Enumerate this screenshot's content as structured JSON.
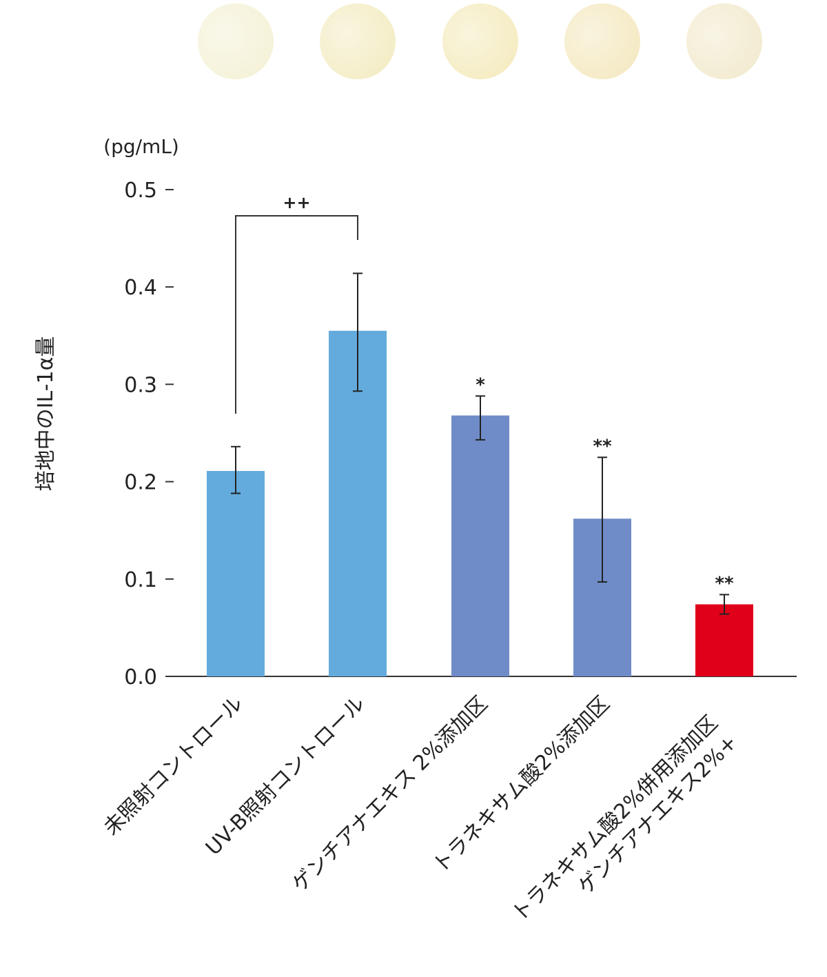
{
  "chart_data": {
    "type": "bar",
    "unit_label": "(pg/mL)",
    "ylabel": "培地中のIL-1α量",
    "ylim": [
      0,
      0.5
    ],
    "yticks": [
      "0.0",
      "0.1",
      "0.2",
      "0.3",
      "0.4",
      "0.5"
    ],
    "categories": [
      [
        "未照射コントロール"
      ],
      [
        "UV-B照射コントロール"
      ],
      [
        "ゲンチアナエキス 2%添加区"
      ],
      [
        "トラネキサム酸2%添加区"
      ],
      [
        "ゲンチアナエキス2%+",
        "トラネキサム酸2%併用添加区"
      ]
    ],
    "values": [
      0.211,
      0.355,
      0.268,
      0.162,
      0.074
    ],
    "error_upper": [
      0.236,
      0.414,
      0.288,
      0.225,
      0.084
    ],
    "error_lower": [
      0.188,
      0.293,
      0.243,
      0.097,
      0.064
    ],
    "significance": [
      "",
      "",
      "*",
      "**",
      "**"
    ],
    "comparison": {
      "from": 0,
      "to": 1,
      "label": "++"
    },
    "colors": [
      "#64abdd",
      "#64abdd",
      "#6f8cc8",
      "#6f8cc8",
      "#e0001a"
    ],
    "sample_colors": [
      "#f5f2d8",
      "#f4edc6",
      "#f5ecc2",
      "#f5eac4",
      "#f3ebd0"
    ]
  }
}
